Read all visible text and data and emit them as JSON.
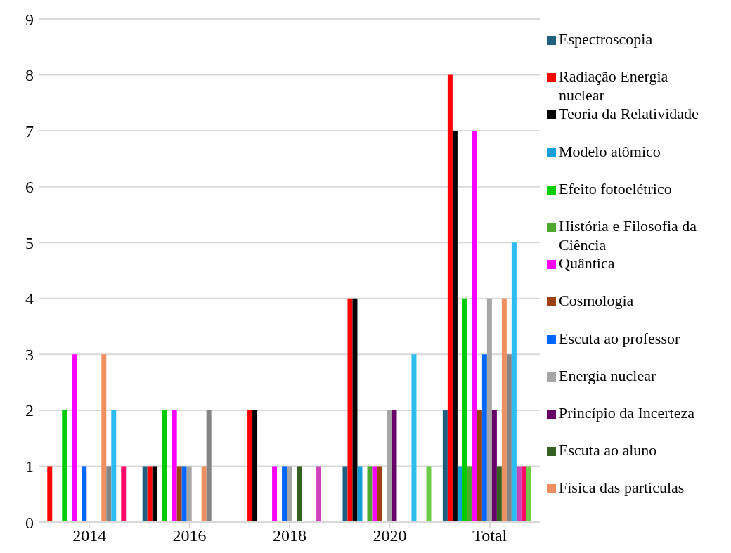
{
  "chart_data": {
    "type": "bar",
    "categories": [
      "2014",
      "2016",
      "2018",
      "2020",
      "Total"
    ],
    "series": [
      {
        "name": "Espectroscopia",
        "color": "#1f5f7f",
        "values": [
          0,
          1,
          0,
          1,
          2
        ]
      },
      {
        "name": "Radiação  Energia nuclear",
        "color": "#ff0000",
        "values": [
          1,
          1,
          2,
          4,
          8
        ]
      },
      {
        "name": "Teoria da Relatividade",
        "color": "#000000",
        "values": [
          0,
          1,
          2,
          4,
          7
        ]
      },
      {
        "name": "Modelo atômico",
        "color": "#139fd6",
        "values": [
          0,
          0,
          0,
          1,
          1
        ]
      },
      {
        "name": "Efeito fotoelétrico",
        "color": "#00cc00",
        "values": [
          2,
          2,
          0,
          0,
          4
        ]
      },
      {
        "name": "História e Filosofia da Ciência",
        "color": "#4ea72e",
        "values": [
          0,
          0,
          0,
          1,
          1
        ]
      },
      {
        "name": "Quântica",
        "color": "#ff00ff",
        "values": [
          3,
          2,
          1,
          1,
          7
        ]
      },
      {
        "name": "Cosmologia",
        "color": "#9a4212",
        "values": [
          0,
          1,
          0,
          1,
          2
        ]
      },
      {
        "name": "Escuta ao professor",
        "color": "#0066ff",
        "values": [
          1,
          1,
          1,
          0,
          3
        ]
      },
      {
        "name": "Energia nuclear",
        "color": "#a6a6a6",
        "values": [
          0,
          1,
          1,
          2,
          4
        ]
      },
      {
        "name": "Princípio da Incerteza",
        "color": "#660066",
        "values": [
          0,
          0,
          0,
          2,
          2
        ]
      },
      {
        "name": "Escuta ao aluno",
        "color": "#336122",
        "values": [
          0,
          0,
          1,
          0,
          1
        ]
      },
      {
        "name": "Física das partículas",
        "color": "#ed8f5f",
        "values": [
          3,
          1,
          0,
          0,
          4
        ]
      },
      {
        "color": "#848484",
        "values": [
          1,
          2,
          0,
          0,
          3
        ]
      },
      {
        "color": "#2dbcf0",
        "values": [
          2,
          0,
          0,
          3,
          5
        ]
      },
      {
        "color": "#cc44bb",
        "values": [
          0,
          0,
          1,
          0,
          1
        ]
      },
      {
        "color": "#ff0a6a",
        "values": [
          1,
          0,
          0,
          0,
          1
        ]
      },
      {
        "color": "#6dcc4a",
        "values": [
          0,
          0,
          0,
          1,
          1
        ]
      }
    ],
    "ylim": [
      0,
      9
    ],
    "yticks": [
      0,
      1,
      2,
      3,
      4,
      5,
      6,
      7,
      8,
      9
    ],
    "grid": "y",
    "legend": "right"
  }
}
